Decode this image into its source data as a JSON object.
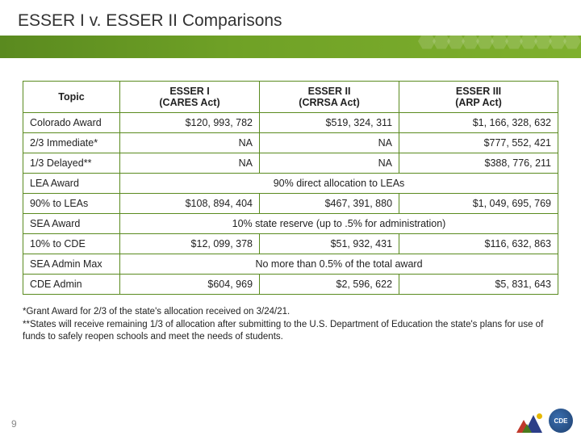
{
  "title": "ESSER I v. ESSER II Comparisons",
  "table": {
    "columns": [
      "Topic",
      "ESSER I\n(CARES Act)",
      "ESSER II\n(CRRSA Act)",
      "ESSER III\n(ARP Act)"
    ],
    "rows": [
      {
        "label": "Colorado Award",
        "cells": [
          "$120, 993, 782",
          "$519, 324, 311",
          "$1, 166, 328, 632"
        ]
      },
      {
        "label": "2/3 Immediate*",
        "cells": [
          "NA",
          "NA",
          "$777, 552, 421"
        ]
      },
      {
        "label": "1/3 Delayed**",
        "cells": [
          "NA",
          "NA",
          "$388, 776, 211"
        ]
      },
      {
        "label": "LEA Award",
        "span": "90% direct allocation to LEAs"
      },
      {
        "label": "90% to LEAs",
        "cells": [
          "$108, 894, 404",
          "$467, 391, 880",
          "$1, 049, 695, 769"
        ]
      },
      {
        "label": "SEA Award",
        "span": "10% state reserve (up to .5% for administration)"
      },
      {
        "label": "10% to CDE",
        "cells": [
          "$12, 099, 378",
          "$51, 932, 431",
          "$116, 632, 863"
        ]
      },
      {
        "label": "SEA Admin Max",
        "span": "No more than 0.5% of the total award"
      },
      {
        "label": "CDE Admin",
        "cells": [
          "$604, 969",
          "$2, 596, 622",
          "$5, 831, 643"
        ]
      }
    ]
  },
  "footnotes": [
    "*Grant Award for 2/3 of the state's allocation received on 3/24/21.",
    "**States will receive remaining 1/3 of allocation after submitting to the U.S. Department of Education the state's plans for use of funds to safely reopen schools and meet the needs of students."
  ],
  "page_number": "9",
  "logo_cde_text": "CDE",
  "colors": {
    "band_start": "#5a8a1f",
    "band_end": "#7fb02e",
    "border": "#5a8a1f"
  }
}
